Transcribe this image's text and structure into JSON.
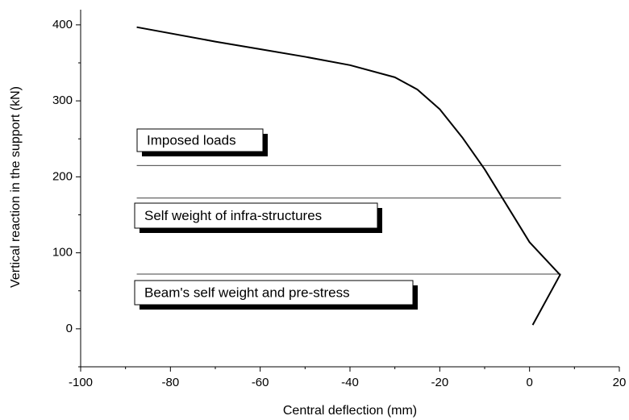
{
  "chart_data": {
    "type": "line",
    "x_label": "Central deflection (mm)",
    "y_label": "Vertical reaction in the support (kN)",
    "xlim": [
      -100,
      20
    ],
    "ylim": [
      -50,
      420
    ],
    "xticks": [
      -100,
      -80,
      -60,
      -40,
      -20,
      0,
      20
    ],
    "yticks": [
      0,
      100,
      200,
      300,
      400
    ],
    "series": [
      {
        "color": "#000000",
        "x": [
          -87.5,
          -70,
          -60,
          -50,
          -40,
          -30,
          -25,
          -20,
          -15,
          -10,
          -5,
          0,
          6.8,
          0.7
        ],
        "values": [
          397,
          378,
          368,
          358,
          347,
          331,
          315,
          289,
          252,
          210,
          162,
          114,
          71,
          5
        ]
      }
    ],
    "hlines": {
      "values": [
        215,
        172,
        72
      ],
      "x_range": [
        -87.5,
        7
      ],
      "color": "#000000"
    },
    "annotations": [
      "Imposed loads",
      "Self weight of infra-structures",
      "Beam's self weight and pre-stress"
    ]
  }
}
